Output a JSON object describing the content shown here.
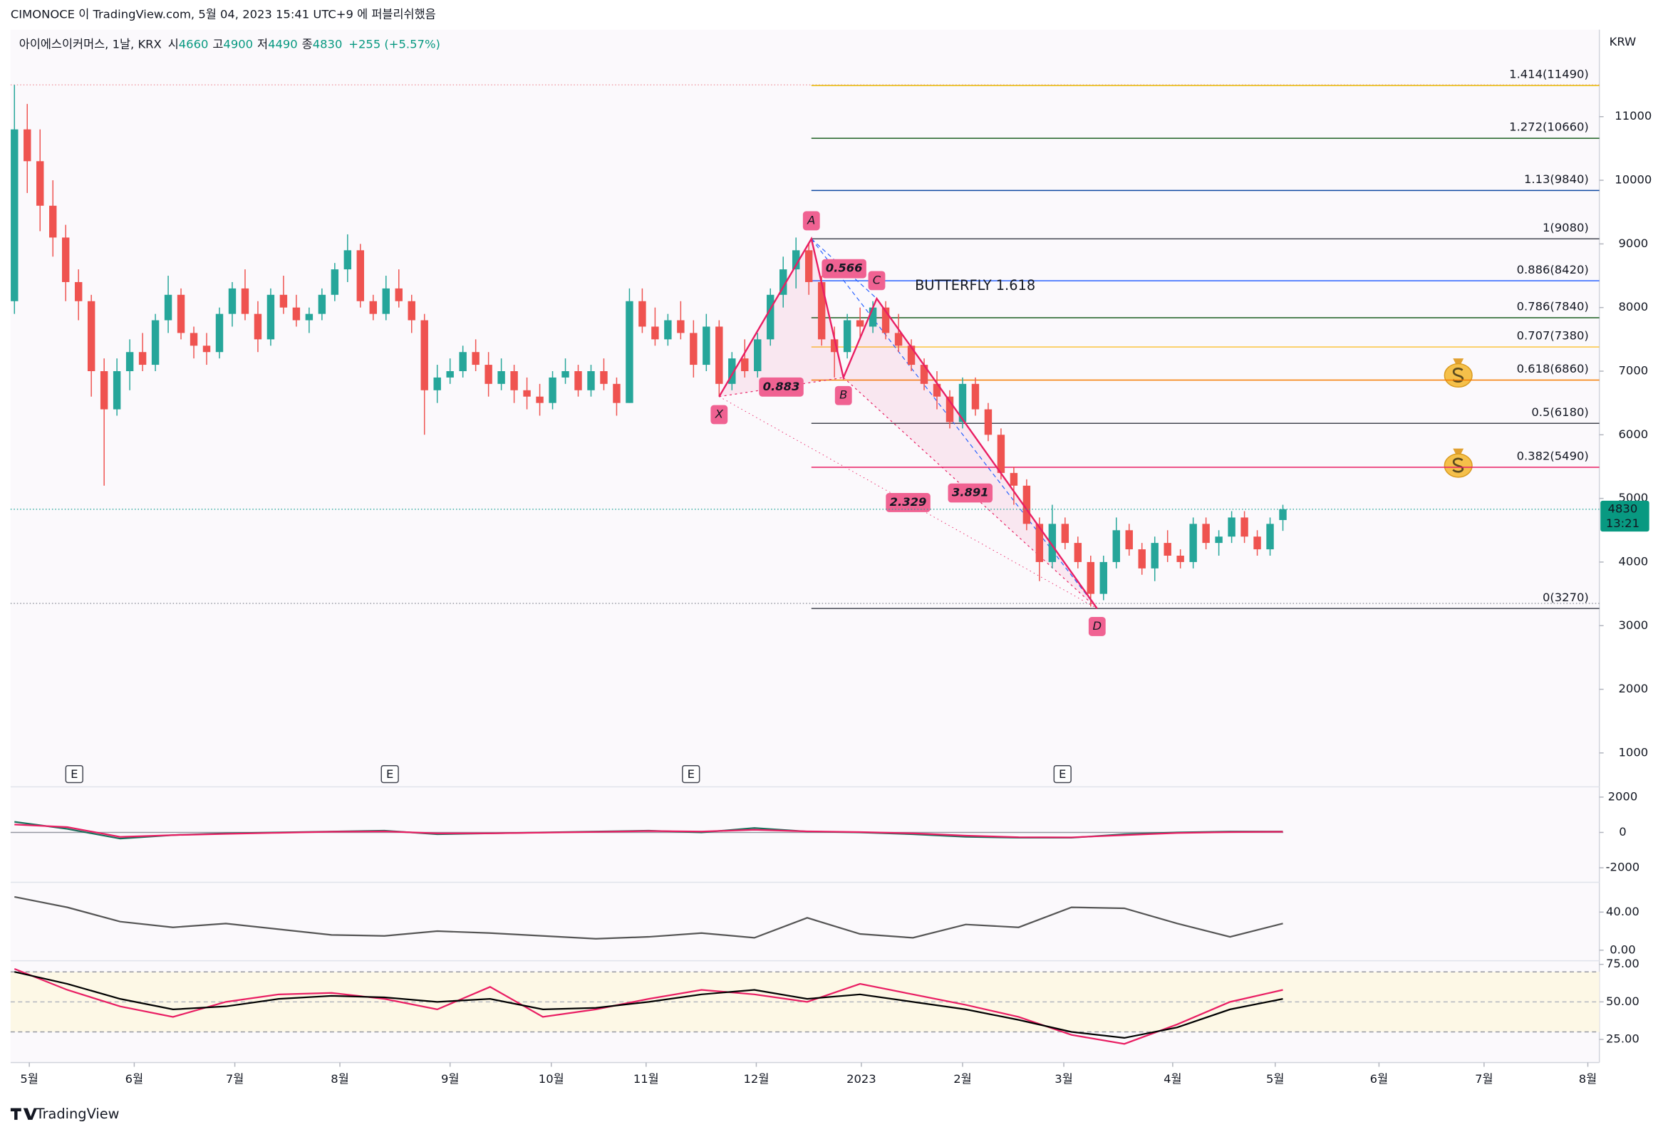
{
  "header": {
    "publisher_line": "CIMONOCE 이 TradingView.com, 5월 04, 2023 15:41 UTC+9 에 퍼블리쉬했음",
    "symbol": "아이에스이커머스, 1날, KRX",
    "open_label": "시",
    "high_label": "고",
    "low_label": "저",
    "close_label": "종",
    "change": "+255 (+5.57%)"
  },
  "chart_data": {
    "type": "candlestick",
    "currency": "KRW",
    "countdown": "13:21",
    "up_color": "#26a69a",
    "down_color": "#ef5350",
    "candles": [
      [
        8100,
        11500,
        7900,
        10800
      ],
      [
        10800,
        11200,
        9800,
        10300
      ],
      [
        10300,
        10800,
        9200,
        9600
      ],
      [
        9600,
        10000,
        8800,
        9100
      ],
      [
        9100,
        9300,
        8100,
        8400
      ],
      [
        8400,
        8600,
        7800,
        8100
      ],
      [
        8100,
        8200,
        6600,
        7000
      ],
      [
        7000,
        7200,
        5200,
        6400
      ],
      [
        6400,
        7200,
        6300,
        7000
      ],
      [
        7000,
        7500,
        6700,
        7300
      ],
      [
        7300,
        7600,
        7000,
        7100
      ],
      [
        7100,
        7900,
        7000,
        7800
      ],
      [
        7800,
        8500,
        7600,
        8200
      ],
      [
        8200,
        8300,
        7500,
        7600
      ],
      [
        7600,
        7700,
        7200,
        7400
      ],
      [
        7400,
        7600,
        7100,
        7300
      ],
      [
        7300,
        8000,
        7200,
        7900
      ],
      [
        7900,
        8400,
        7700,
        8300
      ],
      [
        8300,
        8600,
        7800,
        7900
      ],
      [
        7900,
        8100,
        7300,
        7500
      ],
      [
        7500,
        8300,
        7400,
        8200
      ],
      [
        8200,
        8500,
        7900,
        8000
      ],
      [
        8000,
        8200,
        7700,
        7800
      ],
      [
        7800,
        8000,
        7600,
        7900
      ],
      [
        7900,
        8300,
        7800,
        8200
      ],
      [
        8200,
        8700,
        8100,
        8600
      ],
      [
        8600,
        9150,
        8400,
        8900
      ],
      [
        8900,
        9000,
        8000,
        8100
      ],
      [
        8100,
        8200,
        7800,
        7900
      ],
      [
        7900,
        8500,
        7800,
        8300
      ],
      [
        8300,
        8600,
        8000,
        8100
      ],
      [
        8100,
        8200,
        7600,
        7800
      ],
      [
        7800,
        7900,
        6000,
        6700
      ],
      [
        6700,
        7100,
        6500,
        6900
      ],
      [
        6900,
        7200,
        6800,
        7000
      ],
      [
        7000,
        7400,
        6900,
        7300
      ],
      [
        7300,
        7500,
        7000,
        7100
      ],
      [
        7100,
        7300,
        6600,
        6800
      ],
      [
        6800,
        7200,
        6700,
        7000
      ],
      [
        7000,
        7100,
        6500,
        6700
      ],
      [
        6700,
        6900,
        6400,
        6600
      ],
      [
        6600,
        6800,
        6300,
        6500
      ],
      [
        6500,
        7000,
        6400,
        6900
      ],
      [
        6900,
        7200,
        6800,
        7000
      ],
      [
        7000,
        7100,
        6600,
        6700
      ],
      [
        6700,
        7100,
        6600,
        7000
      ],
      [
        7000,
        7200,
        6700,
        6800
      ],
      [
        6800,
        6900,
        6300,
        6500
      ],
      [
        6500,
        8300,
        6500,
        8100
      ],
      [
        8100,
        8300,
        7600,
        7700
      ],
      [
        7700,
        8000,
        7400,
        7500
      ],
      [
        7500,
        7900,
        7400,
        7800
      ],
      [
        7800,
        8100,
        7500,
        7600
      ],
      [
        7600,
        7800,
        6900,
        7100
      ],
      [
        7100,
        7900,
        7000,
        7700
      ],
      [
        7700,
        7800,
        6600,
        6800
      ],
      [
        6800,
        7300,
        6700,
        7200
      ],
      [
        7200,
        7500,
        6900,
        7000
      ],
      [
        7000,
        7600,
        6900,
        7500
      ],
      [
        7500,
        8300,
        7400,
        8200
      ],
      [
        8200,
        8800,
        8000,
        8600
      ],
      [
        8600,
        9100,
        8300,
        8900
      ],
      [
        8900,
        9000,
        8200,
        8400
      ],
      [
        8400,
        8500,
        7400,
        7500
      ],
      [
        7500,
        7700,
        6900,
        7300
      ],
      [
        7300,
        7900,
        7200,
        7800
      ],
      [
        7800,
        8000,
        7500,
        7700
      ],
      [
        7700,
        8100,
        7600,
        8000
      ],
      [
        8000,
        8100,
        7500,
        7600
      ],
      [
        7600,
        7900,
        7300,
        7400
      ],
      [
        7400,
        7500,
        7000,
        7100
      ],
      [
        7100,
        7200,
        6700,
        6800
      ],
      [
        6800,
        7000,
        6400,
        6600
      ],
      [
        6600,
        6700,
        6100,
        6200
      ],
      [
        6200,
        6900,
        6100,
        6800
      ],
      [
        6800,
        6900,
        6300,
        6400
      ],
      [
        6400,
        6500,
        5900,
        6000
      ],
      [
        6000,
        6100,
        5300,
        5400
      ],
      [
        5400,
        5500,
        4900,
        5200
      ],
      [
        5200,
        5300,
        4500,
        4600
      ],
      [
        4600,
        4700,
        3700,
        4000
      ],
      [
        4000,
        4900,
        3900,
        4600
      ],
      [
        4600,
        4700,
        4200,
        4300
      ],
      [
        4300,
        4400,
        3900,
        4000
      ],
      [
        4000,
        4100,
        3300,
        3500
      ],
      [
        3500,
        4100,
        3400,
        4000
      ],
      [
        4000,
        4700,
        3900,
        4500
      ],
      [
        4500,
        4600,
        4100,
        4200
      ],
      [
        4200,
        4300,
        3800,
        3900
      ],
      [
        3900,
        4400,
        3700,
        4300
      ],
      [
        4300,
        4500,
        4000,
        4100
      ],
      [
        4100,
        4200,
        3900,
        4000
      ],
      [
        4000,
        4700,
        3900,
        4600
      ],
      [
        4600,
        4700,
        4200,
        4300
      ],
      [
        4300,
        4500,
        4100,
        4400
      ],
      [
        4400,
        4800,
        4300,
        4700
      ],
      [
        4700,
        4800,
        4300,
        4400
      ],
      [
        4400,
        4500,
        4100,
        4200
      ],
      [
        4200,
        4700,
        4100,
        4600
      ],
      [
        4660,
        4900,
        4490,
        4830
      ]
    ],
    "xlim": [
      -0.3,
      123.7
    ],
    "xticks": [
      {
        "value": 1.16,
        "label": "5월"
      },
      {
        "value": 9.35,
        "label": "6월"
      },
      {
        "value": 17.2,
        "label": "7월"
      },
      {
        "value": 25.4,
        "label": "8월"
      },
      {
        "value": 34.0,
        "label": "9월"
      },
      {
        "value": 41.9,
        "label": "10월"
      },
      {
        "value": 49.3,
        "label": "11월"
      },
      {
        "value": 57.9,
        "label": "12월"
      },
      {
        "value": 66.1,
        "label": "2023"
      },
      {
        "value": 74.0,
        "label": "2월"
      },
      {
        "value": 81.9,
        "label": "3월"
      },
      {
        "value": 90.4,
        "label": "4월"
      },
      {
        "value": 98.4,
        "label": "5월"
      },
      {
        "value": 106.5,
        "label": "6월"
      },
      {
        "value": 114.7,
        "label": "7월"
      },
      {
        "value": 122.8,
        "label": "8월"
      }
    ],
    "ylim": [
      467,
      12000
    ],
    "yticks": [
      1000,
      2000,
      3000,
      4000,
      5000,
      6000,
      7000,
      8000,
      9000,
      10000,
      11000
    ],
    "horizontal_lines": [
      11500,
      3350
    ],
    "fib_levels": [
      {
        "label": "1.414(11490)",
        "price": 11490,
        "color": "#e6b800"
      },
      {
        "label": "1.272(10660)",
        "price": 10660,
        "color": "#1b5e20"
      },
      {
        "label": "1.13(9840)",
        "price": 9840,
        "color": "#0d47a1"
      },
      {
        "label": "1(9080)",
        "price": 9080,
        "color": "#434651"
      },
      {
        "label": "0.886(8420)",
        "price": 8420,
        "color": "#2962ff"
      },
      {
        "label": "0.786(7840)",
        "price": 7840,
        "color": "#1b5e20"
      },
      {
        "label": "0.707(7380)",
        "price": 7380,
        "color": "#fbc02d"
      },
      {
        "label": "0.618(6860)",
        "price": 6860,
        "color": "#f57c00"
      },
      {
        "label": "0.5(6180)",
        "price": 6180,
        "color": "#434651"
      },
      {
        "label": "0.382(5490)",
        "price": 5490,
        "color": "#e91e63"
      },
      {
        "label": "0(3270)",
        "price": 3270,
        "color": "#434651"
      }
    ],
    "fib_start": 62.2,
    "pattern": {
      "name": "BUTTERFLY 1.618",
      "color": "#e91e63",
      "points": [
        {
          "label": "X",
          "x": 55,
          "price": 6600
        },
        {
          "label": "A",
          "x": 62.2,
          "price": 9080
        },
        {
          "label": "B",
          "x": 64.7,
          "price": 6900
        },
        {
          "label": "C",
          "x": 67.3,
          "price": 8140
        },
        {
          "label": "D",
          "x": 84.5,
          "price": 3270
        }
      ],
      "ratios": [
        "0.883",
        "0.566",
        "2.329",
        "3.891"
      ]
    },
    "earnings": {
      "label": "E",
      "x": [
        4.67,
        29.3,
        52.8,
        81.8
      ]
    },
    "indicators": [
      {
        "ylim": [
          -2700,
          2400
        ],
        "yticks": [
          -2000,
          0,
          2000
        ],
        "zero_line": true,
        "series": [
          {
            "color": "#1b6f5c",
            "values": [
              600,
              200,
              -350,
              -150,
              -50,
              0,
              50,
              100,
              -100,
              -50,
              0,
              50,
              100,
              0,
              250,
              50,
              0,
              -100,
              -250,
              -300,
              -300,
              -100,
              0,
              50,
              50
            ]
          },
          {
            "color": "#e91e63",
            "values": [
              450,
              300,
              -250,
              -150,
              -80,
              -20,
              40,
              60,
              -50,
              -50,
              -10,
              30,
              80,
              50,
              150,
              60,
              20,
              -50,
              -180,
              -270,
              -280,
              -150,
              -30,
              20,
              40
            ]
          }
        ]
      },
      {
        "ylim": [
          -10,
          68
        ],
        "yticks": [
          {
            "value": 0,
            "label": "0.00"
          },
          {
            "value": 40,
            "label": "40.00"
          }
        ],
        "series": [
          {
            "color": "#555555",
            "values": [
              56,
              45,
              30,
              24,
              28,
              22,
              16,
              15,
              20,
              18,
              15,
              12,
              14,
              18,
              13,
              34,
              17,
              13,
              27,
              24,
              45,
              44,
              28,
              14,
              28
            ]
          }
        ]
      },
      {
        "ylim": [
          11,
          76
        ],
        "yticks": [
          {
            "value": 25,
            "label": "25.00"
          },
          {
            "value": 50,
            "label": "50.00"
          },
          {
            "value": 75,
            "label": "75.00"
          }
        ],
        "levels": [
          70,
          30
        ],
        "band_color": "#fdf8e6",
        "series": [
          {
            "color": "#e91e63",
            "values": [
              72,
              58,
              47,
              40,
              50,
              55,
              56,
              52,
              45,
              60,
              40,
              45,
              52,
              58,
              55,
              50,
              62,
              55,
              48,
              40,
              28,
              22,
              35,
              50,
              58
            ]
          },
          {
            "color": "#000000",
            "values": [
              70,
              62,
              52,
              45,
              47,
              52,
              54,
              53,
              50,
              52,
              45,
              46,
              50,
              55,
              58,
              52,
              55,
              50,
              45,
              38,
              30,
              26,
              33,
              45,
              52
            ]
          }
        ]
      }
    ]
  },
  "footer": {
    "logo_text": "TradingView"
  }
}
